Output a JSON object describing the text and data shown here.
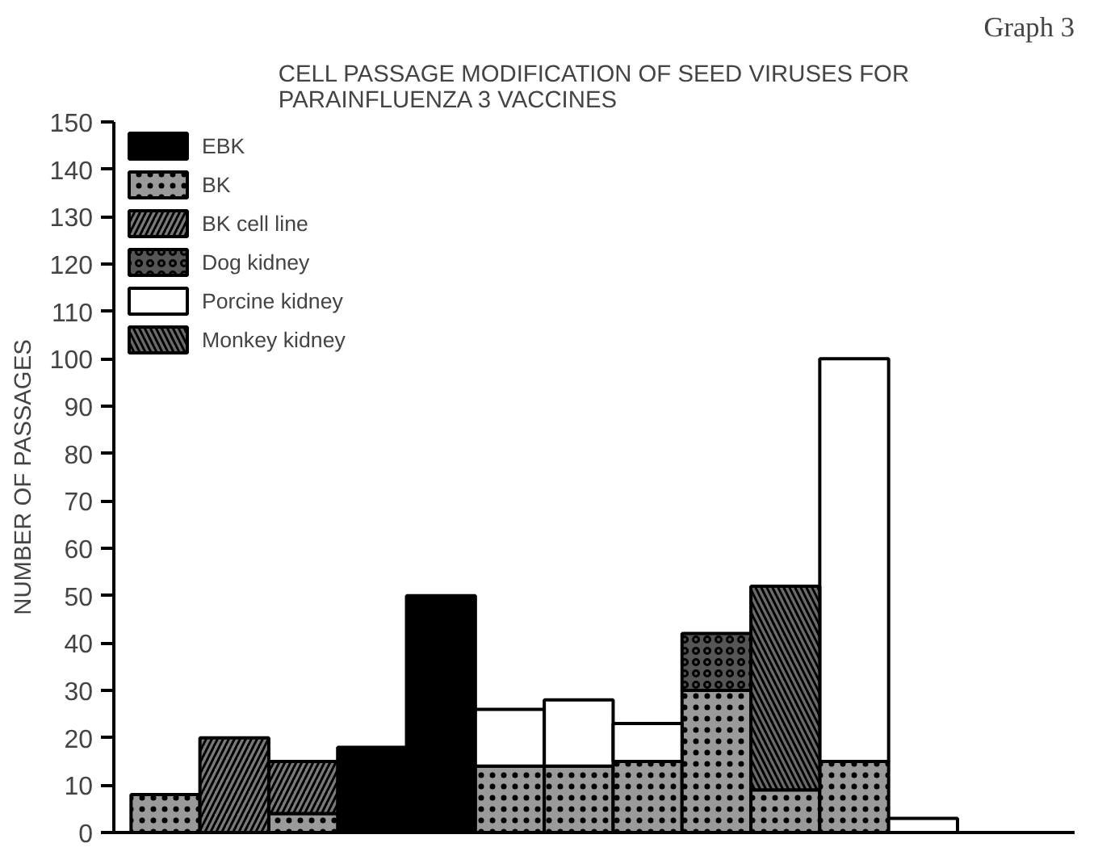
{
  "chart_data": {
    "type": "bar",
    "title": "CELL PASSAGE MODIFICATION OF SEED VIRUSES FOR\nPARAINFLUENZA 3 VACCINES",
    "ylabel": "NUMBER OF PASSAGES",
    "annotations": [
      "Graph 3"
    ],
    "categories": [
      null,
      null,
      null,
      null,
      null,
      null,
      null,
      null,
      null,
      null,
      null,
      null
    ],
    "stacked": true,
    "series": [
      {
        "name": "EBK",
        "color": "#000000",
        "values": [
          null,
          null,
          null,
          18,
          50,
          null,
          null,
          null,
          null,
          null,
          null,
          null
        ]
      },
      {
        "name": "BK",
        "color": "#9a9a9a",
        "values": [
          8,
          null,
          4,
          null,
          null,
          14,
          14,
          15,
          30,
          9,
          15,
          null
        ]
      },
      {
        "name": "BK cell line",
        "color": "#7a7a7a",
        "values": [
          null,
          20,
          11,
          null,
          null,
          null,
          null,
          null,
          null,
          null,
          null,
          null
        ]
      },
      {
        "name": "Dog kidney",
        "color": "#555555",
        "values": [
          null,
          null,
          null,
          null,
          null,
          null,
          null,
          null,
          12,
          null,
          null,
          null
        ]
      },
      {
        "name": "Porcine kidney",
        "color": "#ffffff",
        "values": [
          null,
          null,
          null,
          null,
          null,
          12,
          14,
          8,
          null,
          null,
          85,
          3
        ]
      },
      {
        "name": "Monkey kidney",
        "color": "#6a6a6a",
        "values": [
          null,
          null,
          null,
          null,
          null,
          null,
          null,
          null,
          null,
          43,
          null,
          null
        ]
      }
    ],
    "ylim": [
      0,
      150
    ],
    "yticks": [
      0,
      10,
      20,
      30,
      40,
      50,
      60,
      70,
      80,
      90,
      100,
      110,
      120,
      130,
      140,
      150
    ],
    "tick_labels": "y",
    "legend": "top left",
    "grid": false
  }
}
